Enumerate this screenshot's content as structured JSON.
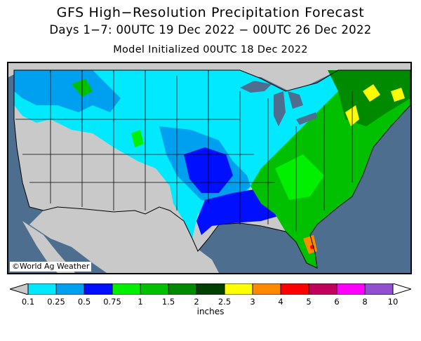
{
  "header": {
    "title": "GFS High−Resolution Precipitation Forecast",
    "subtitle": "Days 1−7: 00UTC 19 Dec 2022 − 00UTC 26 Dec 2022",
    "init": "Model Initialized 00UTC 18 Dec 2022"
  },
  "map": {
    "region": "Contiguous United States",
    "credit": "©World Ag Weather"
  },
  "legend": {
    "units": "inches",
    "ticks": [
      "0.1",
      "0.25",
      "0.5",
      "0.75",
      "1",
      "1.5",
      "2",
      "2.5",
      "3",
      "4",
      "5",
      "6",
      "8",
      "10"
    ],
    "colors": [
      "#c9c9c9",
      "#00e9ff",
      "#00a0f0",
      "#0010ff",
      "#00f000",
      "#00c000",
      "#008a00",
      "#004000",
      "#ffff00",
      "#ff8a00",
      "#ff0000",
      "#c0005a",
      "#ff00ff",
      "#9050d0",
      "#ffffff"
    ]
  },
  "colors": {
    "ocean": "#4d6e8f",
    "land_outside": "#c9c9c9",
    "lakes": "#4d6e8f"
  }
}
